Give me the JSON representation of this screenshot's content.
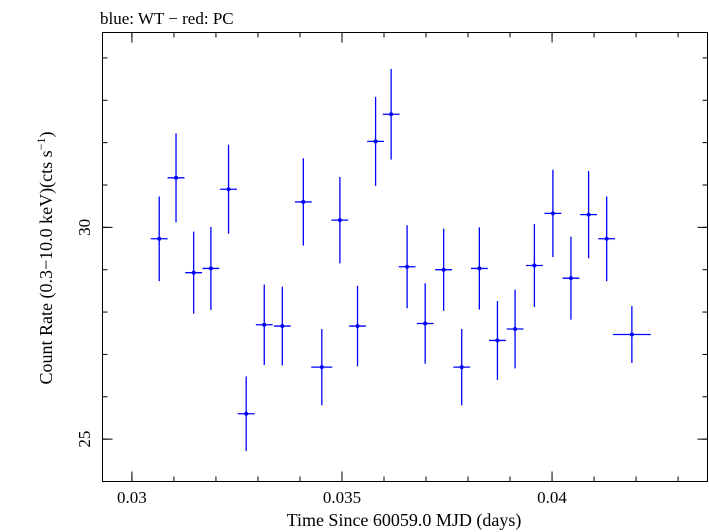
{
  "chart_data": {
    "type": "scatter",
    "title": "blue: WT − red: PC",
    "xlabel": "Time Since 60059.0 MJD (days)",
    "ylabel_main": "Count Rate (0.3−10.0 keV)(cts s",
    "ylabel_sup": "−1",
    "ylabel_end": ")",
    "xlim": [
      0.0293,
      0.0437
    ],
    "ylim": [
      24.0,
      34.6
    ],
    "x_ticks": [
      {
        "value": 0.03,
        "label": "0.03"
      },
      {
        "value": 0.035,
        "label": "0.035"
      },
      {
        "value": 0.04,
        "label": "0.04"
      }
    ],
    "y_ticks": [
      {
        "value": 25,
        "label": "25"
      },
      {
        "value": 30,
        "label": "30"
      }
    ],
    "series": [
      {
        "color": "#0000ff",
        "points": [
          {
            "x": 0.03065,
            "xerr": 0.0002,
            "y": 29.73,
            "yerr": 1.0
          },
          {
            "x": 0.03105,
            "xerr": 0.0002,
            "y": 31.17,
            "yerr": 1.05
          },
          {
            "x": 0.03147,
            "xerr": 0.0002,
            "y": 28.93,
            "yerr": 0.97
          },
          {
            "x": 0.03188,
            "xerr": 0.0002,
            "y": 29.03,
            "yerr": 0.98
          },
          {
            "x": 0.0323,
            "xerr": 0.0002,
            "y": 30.9,
            "yerr": 1.05
          },
          {
            "x": 0.03272,
            "xerr": 0.0002,
            "y": 25.6,
            "yerr": 0.88
          },
          {
            "x": 0.03315,
            "xerr": 0.0002,
            "y": 27.7,
            "yerr": 0.95
          },
          {
            "x": 0.03358,
            "xerr": 0.0002,
            "y": 27.67,
            "yerr": 0.93
          },
          {
            "x": 0.03408,
            "xerr": 0.0002,
            "y": 30.6,
            "yerr": 1.03
          },
          {
            "x": 0.03452,
            "xerr": 0.00025,
            "y": 26.7,
            "yerr": 0.9
          },
          {
            "x": 0.03495,
            "xerr": 0.0002,
            "y": 30.17,
            "yerr": 1.02
          },
          {
            "x": 0.03537,
            "xerr": 0.0002,
            "y": 27.67,
            "yerr": 0.95
          },
          {
            "x": 0.0358,
            "xerr": 0.0002,
            "y": 32.03,
            "yerr": 1.05
          },
          {
            "x": 0.03617,
            "xerr": 0.0002,
            "y": 32.67,
            "yerr": 1.07
          },
          {
            "x": 0.03655,
            "xerr": 0.0002,
            "y": 29.07,
            "yerr": 0.98
          },
          {
            "x": 0.03698,
            "xerr": 0.0002,
            "y": 27.73,
            "yerr": 0.95
          },
          {
            "x": 0.03742,
            "xerr": 0.0002,
            "y": 29.0,
            "yerr": 0.97
          },
          {
            "x": 0.03785,
            "xerr": 0.0002,
            "y": 26.7,
            "yerr": 0.9
          },
          {
            "x": 0.03827,
            "xerr": 0.0002,
            "y": 29.03,
            "yerr": 0.97
          },
          {
            "x": 0.0387,
            "xerr": 0.0002,
            "y": 27.33,
            "yerr": 0.93
          },
          {
            "x": 0.03912,
            "xerr": 0.0002,
            "y": 27.6,
            "yerr": 0.93
          },
          {
            "x": 0.03958,
            "xerr": 0.0002,
            "y": 29.1,
            "yerr": 0.98
          },
          {
            "x": 0.04002,
            "xerr": 0.0002,
            "y": 30.33,
            "yerr": 1.03
          },
          {
            "x": 0.04045,
            "xerr": 0.0002,
            "y": 28.8,
            "yerr": 0.98
          },
          {
            "x": 0.04087,
            "xerr": 0.0002,
            "y": 30.3,
            "yerr": 1.03
          },
          {
            "x": 0.0413,
            "xerr": 0.0002,
            "y": 29.73,
            "yerr": 1.0
          },
          {
            "x": 0.0419,
            "xerr": 0.00045,
            "y": 27.47,
            "yerr": 0.67
          }
        ]
      }
    ]
  }
}
